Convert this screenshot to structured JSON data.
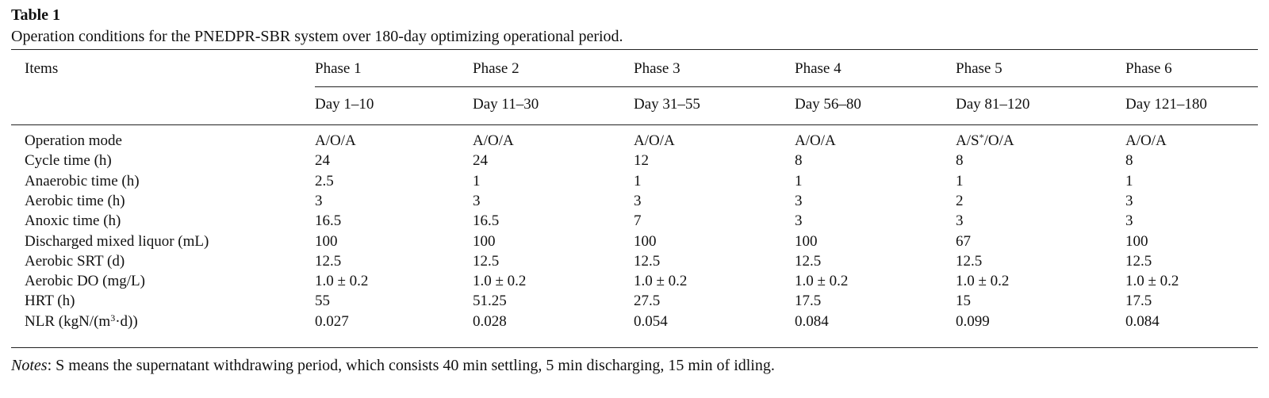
{
  "table": {
    "label": "Table 1",
    "caption": "Operation conditions for the PNEDPR-SBR system over 180-day optimizing operational period.",
    "header_items": "Items",
    "phases": [
      {
        "name": "Phase 1",
        "days": "Day 1–10"
      },
      {
        "name": "Phase 2",
        "days": "Day 11–30"
      },
      {
        "name": "Phase 3",
        "days": "Day 31–55"
      },
      {
        "name": "Phase 4",
        "days": "Day 56–80"
      },
      {
        "name": "Phase 5",
        "days": "Day 81–120"
      },
      {
        "name": "Phase 6",
        "days": "Day 121–180"
      }
    ],
    "rows": [
      {
        "item": "Operation mode",
        "values": [
          "A/O/A",
          "A/O/A",
          "A/O/A",
          "A/O/A",
          "A/S*/O/A",
          "A/O/A"
        ]
      },
      {
        "item": "Cycle time (h)",
        "values": [
          "24",
          "24",
          "12",
          "8",
          "8",
          "8"
        ]
      },
      {
        "item": "Anaerobic time (h)",
        "values": [
          "2.5",
          "1",
          "1",
          "1",
          "1",
          "1"
        ]
      },
      {
        "item": "Aerobic time (h)",
        "values": [
          "3",
          "3",
          "3",
          "3",
          "2",
          "3"
        ]
      },
      {
        "item": "Anoxic time (h)",
        "values": [
          "16.5",
          "16.5",
          "7",
          "3",
          "3",
          "3"
        ]
      },
      {
        "item": "Discharged mixed liquor (mL)",
        "values": [
          "100",
          "100",
          "100",
          "100",
          "67",
          "100"
        ]
      },
      {
        "item": "Aerobic SRT (d)",
        "values": [
          "12.5",
          "12.5",
          "12.5",
          "12.5",
          "12.5",
          "12.5"
        ]
      },
      {
        "item": "Aerobic DO (mg/L)",
        "values": [
          "1.0 ± 0.2",
          "1.0 ± 0.2",
          "1.0 ± 0.2",
          "1.0 ± 0.2",
          "1.0 ± 0.2",
          "1.0 ± 0.2"
        ]
      },
      {
        "item": "HRT (h)",
        "values": [
          "55",
          "51.25",
          "27.5",
          "17.5",
          "15",
          "17.5"
        ]
      },
      {
        "item": "NLR (kgN/(m3·d))",
        "values": [
          "0.027",
          "0.028",
          "0.054",
          "0.084",
          "0.099",
          "0.084"
        ]
      }
    ],
    "notes": {
      "prefix": "Notes",
      "text": ": S means the supernatant withdrawing period, which consists 40 min settling, 5 min discharging, 15 min of idling."
    }
  }
}
